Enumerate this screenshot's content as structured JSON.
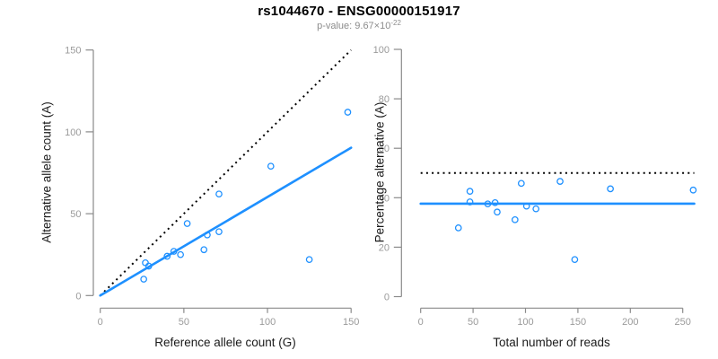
{
  "header": {
    "title": "rs1044670 - ENSG00000151917",
    "subtitle_prefix": "p-value: 9.67×10",
    "subtitle_exponent": "-22"
  },
  "colors": {
    "accent_blue": "#1E90FF",
    "dotted_black": "#000000",
    "axis_line": "#8a8a8a",
    "tick_label": "#9a9a9a",
    "axis_title": "#1a1a1a",
    "subtitle_gray": "#8c8c8c"
  },
  "chart_data": [
    {
      "type": "scatter",
      "panel": "left",
      "xlabel": "Reference allele count (G)",
      "ylabel": "Alternative allele count (A)",
      "xlim": [
        0,
        150
      ],
      "ylim": [
        0,
        150
      ],
      "xticks": [
        0,
        50,
        100,
        150
      ],
      "yticks": [
        0,
        50,
        100,
        150
      ],
      "grid": false,
      "legend": null,
      "marker": "open-circle",
      "points": [
        [
          26,
          10
        ],
        [
          27,
          20
        ],
        [
          29,
          18
        ],
        [
          40,
          24
        ],
        [
          44,
          27
        ],
        [
          48,
          25
        ],
        [
          52,
          44
        ],
        [
          62,
          28
        ],
        [
          64,
          37
        ],
        [
          71,
          39
        ],
        [
          71,
          62
        ],
        [
          102,
          79
        ],
        [
          125,
          22
        ],
        [
          148,
          112
        ]
      ],
      "lines": [
        {
          "name": "identity-line",
          "style": "dotted",
          "color": "#000000",
          "x1": 0,
          "y1": 0,
          "x2": 150,
          "y2": 150
        },
        {
          "name": "fit-line",
          "style": "solid",
          "color": "#1E90FF",
          "x1": 0,
          "y1": 0,
          "x2": 150,
          "y2": 90.3
        }
      ]
    },
    {
      "type": "scatter",
      "panel": "right",
      "xlabel": "Total number of reads",
      "ylabel": "Percentage alternative (A)",
      "xlim": [
        0,
        261
      ],
      "ylim": [
        0,
        100
      ],
      "xticks": [
        0,
        50,
        100,
        150,
        200,
        250
      ],
      "yticks": [
        0,
        20,
        40,
        60,
        80,
        100
      ],
      "grid": false,
      "legend": null,
      "marker": "open-circle",
      "points": [
        [
          36,
          27.8
        ],
        [
          47,
          42.6
        ],
        [
          47,
          38.3
        ],
        [
          64,
          37.5
        ],
        [
          71,
          38.0
        ],
        [
          73,
          34.2
        ],
        [
          90,
          31.1
        ],
        [
          96,
          45.8
        ],
        [
          101,
          36.6
        ],
        [
          110,
          35.5
        ],
        [
          133,
          46.6
        ],
        [
          147,
          15.0
        ],
        [
          181,
          43.6
        ],
        [
          260,
          43.1
        ]
      ],
      "lines": [
        {
          "name": "expected-50pct-line",
          "style": "dotted",
          "color": "#000000",
          "x1": 0,
          "y1": 50,
          "x2": 261,
          "y2": 50
        },
        {
          "name": "mean-percentage-line",
          "style": "solid",
          "color": "#1E90FF",
          "x1": 0,
          "y1": 37.6,
          "x2": 261,
          "y2": 37.6
        }
      ]
    }
  ]
}
